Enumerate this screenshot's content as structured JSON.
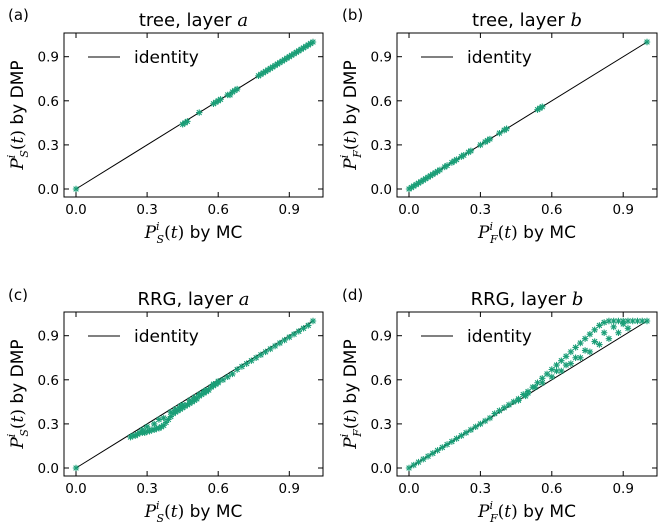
{
  "figure": {
    "marker_color": "#1a9e77",
    "line_color": "#000000"
  },
  "chart_data": [
    {
      "type": "scatter",
      "panel": "(a)",
      "title": "tree, layer a",
      "title_prefix": "tree, layer ",
      "title_var": "a",
      "xlabel": "P_S^i(t) by MC",
      "ylabel": "P_S^i(t) by DMP",
      "label_sub": "S",
      "xlim": [
        0,
        1
      ],
      "ylim": [
        0,
        1
      ],
      "xticks": [
        "0.0",
        "0.3",
        "0.6",
        "0.9"
      ],
      "yticks": [
        "0.0",
        "0.3",
        "0.6",
        "0.9"
      ],
      "legend": "identity",
      "legend_position": "top-left",
      "series": [
        {
          "points": [
            [
              0.0,
              0.0
            ],
            [
              0.45,
              0.44
            ],
            [
              0.46,
              0.45
            ],
            [
              0.47,
              0.46
            ],
            [
              0.52,
              0.52
            ],
            [
              0.58,
              0.58
            ],
            [
              0.59,
              0.59
            ],
            [
              0.6,
              0.6
            ],
            [
              0.61,
              0.61
            ],
            [
              0.64,
              0.64
            ],
            [
              0.65,
              0.64
            ],
            [
              0.66,
              0.66
            ],
            [
              0.67,
              0.67
            ],
            [
              0.68,
              0.68
            ],
            [
              0.77,
              0.77
            ],
            [
              0.78,
              0.78
            ],
            [
              0.79,
              0.79
            ],
            [
              0.8,
              0.8
            ],
            [
              0.81,
              0.81
            ],
            [
              0.82,
              0.82
            ],
            [
              0.83,
              0.83
            ],
            [
              0.84,
              0.84
            ],
            [
              0.85,
              0.85
            ],
            [
              0.86,
              0.86
            ],
            [
              0.87,
              0.87
            ],
            [
              0.88,
              0.88
            ],
            [
              0.89,
              0.89
            ],
            [
              0.9,
              0.9
            ],
            [
              0.91,
              0.91
            ],
            [
              0.92,
              0.92
            ],
            [
              0.93,
              0.93
            ],
            [
              0.94,
              0.94
            ],
            [
              0.95,
              0.95
            ],
            [
              0.96,
              0.96
            ],
            [
              0.97,
              0.97
            ],
            [
              0.98,
              0.98
            ],
            [
              0.99,
              0.99
            ],
            [
              1.0,
              1.0
            ]
          ]
        }
      ]
    },
    {
      "type": "scatter",
      "panel": "(b)",
      "title": "tree, layer b",
      "title_prefix": "tree, layer ",
      "title_var": "b",
      "xlabel": "P_F^i(t) by MC",
      "ylabel": "P_F^i(t) by DMP",
      "label_sub": "F",
      "xlim": [
        0,
        1
      ],
      "ylim": [
        0,
        1
      ],
      "xticks": [
        "0.0",
        "0.3",
        "0.6",
        "0.9"
      ],
      "yticks": [
        "0.0",
        "0.3",
        "0.6",
        "0.9"
      ],
      "legend": "identity",
      "legend_position": "top-left",
      "series": [
        {
          "points": [
            [
              0.0,
              0.0
            ],
            [
              0.01,
              0.01
            ],
            [
              0.02,
              0.02
            ],
            [
              0.03,
              0.03
            ],
            [
              0.04,
              0.04
            ],
            [
              0.05,
              0.05
            ],
            [
              0.06,
              0.06
            ],
            [
              0.07,
              0.07
            ],
            [
              0.08,
              0.08
            ],
            [
              0.09,
              0.09
            ],
            [
              0.1,
              0.1
            ],
            [
              0.11,
              0.11
            ],
            [
              0.12,
              0.12
            ],
            [
              0.13,
              0.13
            ],
            [
              0.15,
              0.15
            ],
            [
              0.16,
              0.16
            ],
            [
              0.18,
              0.18
            ],
            [
              0.19,
              0.19
            ],
            [
              0.2,
              0.2
            ],
            [
              0.22,
              0.22
            ],
            [
              0.23,
              0.23
            ],
            [
              0.25,
              0.25
            ],
            [
              0.26,
              0.26
            ],
            [
              0.3,
              0.3
            ],
            [
              0.32,
              0.32
            ],
            [
              0.33,
              0.33
            ],
            [
              0.34,
              0.34
            ],
            [
              0.38,
              0.38
            ],
            [
              0.4,
              0.4
            ],
            [
              0.41,
              0.41
            ],
            [
              0.54,
              0.54
            ],
            [
              0.55,
              0.55
            ],
            [
              0.56,
              0.56
            ],
            [
              1.0,
              1.0
            ]
          ]
        }
      ]
    },
    {
      "type": "scatter",
      "panel": "(c)",
      "title": "RRG, layer a",
      "title_prefix": "RRG, layer ",
      "title_var": "a",
      "xlabel": "P_S^i(t) by MC",
      "ylabel": "P_S^i(t) by DMP",
      "label_sub": "S",
      "xlim": [
        0,
        1
      ],
      "ylim": [
        0,
        1
      ],
      "xticks": [
        "0.0",
        "0.3",
        "0.6",
        "0.9"
      ],
      "yticks": [
        "0.0",
        "0.3",
        "0.6",
        "0.9"
      ],
      "legend": "identity",
      "legend_position": "top-left",
      "series": [
        {
          "points": [
            [
              0.0,
              0.0
            ],
            [
              0.23,
              0.21
            ],
            [
              0.24,
              0.22
            ],
            [
              0.25,
              0.22
            ],
            [
              0.26,
              0.23
            ],
            [
              0.27,
              0.24
            ],
            [
              0.28,
              0.24
            ],
            [
              0.29,
              0.24
            ],
            [
              0.3,
              0.25
            ],
            [
              0.31,
              0.25
            ],
            [
              0.32,
              0.26
            ],
            [
              0.33,
              0.26
            ],
            [
              0.34,
              0.27
            ],
            [
              0.35,
              0.27
            ],
            [
              0.36,
              0.28
            ],
            [
              0.37,
              0.29
            ],
            [
              0.38,
              0.31
            ],
            [
              0.39,
              0.33
            ],
            [
              0.4,
              0.35
            ],
            [
              0.41,
              0.37
            ],
            [
              0.42,
              0.38
            ],
            [
              0.43,
              0.39
            ],
            [
              0.44,
              0.4
            ],
            [
              0.45,
              0.41
            ],
            [
              0.46,
              0.42
            ],
            [
              0.47,
              0.43
            ],
            [
              0.48,
              0.44
            ],
            [
              0.49,
              0.45
            ],
            [
              0.5,
              0.46
            ],
            [
              0.51,
              0.47
            ],
            [
              0.52,
              0.49
            ],
            [
              0.53,
              0.5
            ],
            [
              0.54,
              0.51
            ],
            [
              0.55,
              0.52
            ],
            [
              0.56,
              0.53
            ],
            [
              0.57,
              0.55
            ],
            [
              0.58,
              0.56
            ],
            [
              0.59,
              0.57
            ],
            [
              0.6,
              0.58
            ],
            [
              0.62,
              0.6
            ],
            [
              0.64,
              0.62
            ],
            [
              0.66,
              0.64
            ],
            [
              0.68,
              0.67
            ],
            [
              0.7,
              0.69
            ],
            [
              0.72,
              0.71
            ],
            [
              0.74,
              0.73
            ],
            [
              0.76,
              0.75
            ],
            [
              0.78,
              0.77
            ],
            [
              0.8,
              0.79
            ],
            [
              0.82,
              0.81
            ],
            [
              0.84,
              0.83
            ],
            [
              0.86,
              0.85
            ],
            [
              0.88,
              0.87
            ],
            [
              0.9,
              0.89
            ],
            [
              0.92,
              0.91
            ],
            [
              0.94,
              0.93
            ],
            [
              0.96,
              0.95
            ],
            [
              0.98,
              0.97
            ],
            [
              1.0,
              1.0
            ],
            [
              0.3,
              0.28
            ],
            [
              0.35,
              0.33
            ],
            [
              0.4,
              0.38
            ],
            [
              0.45,
              0.43
            ],
            [
              0.5,
              0.48
            ],
            [
              0.55,
              0.53
            ],
            [
              0.6,
              0.59
            ],
            [
              0.33,
              0.3
            ],
            [
              0.42,
              0.4
            ],
            [
              0.48,
              0.46
            ],
            [
              0.52,
              0.5
            ],
            [
              0.58,
              0.57
            ],
            [
              0.28,
              0.26
            ],
            [
              0.37,
              0.34
            ],
            [
              0.44,
              0.42
            ],
            [
              0.54,
              0.52
            ]
          ]
        }
      ]
    },
    {
      "type": "scatter",
      "panel": "(d)",
      "title": "RRG, layer b",
      "title_prefix": "RRG, layer ",
      "title_var": "b",
      "xlabel": "P_F^i(t) by MC",
      "ylabel": "P_F^i(t) by DMP",
      "label_sub": "F",
      "xlim": [
        0,
        1
      ],
      "ylim": [
        0,
        1
      ],
      "xticks": [
        "0.0",
        "0.3",
        "0.6",
        "0.9"
      ],
      "yticks": [
        "0.0",
        "0.3",
        "0.6",
        "0.9"
      ],
      "legend": "identity",
      "legend_position": "top-left",
      "series": [
        {
          "points": [
            [
              0.0,
              0.0
            ],
            [
              0.02,
              0.02
            ],
            [
              0.04,
              0.04
            ],
            [
              0.06,
              0.06
            ],
            [
              0.08,
              0.08
            ],
            [
              0.1,
              0.1
            ],
            [
              0.12,
              0.12
            ],
            [
              0.14,
              0.14
            ],
            [
              0.16,
              0.16
            ],
            [
              0.18,
              0.18
            ],
            [
              0.2,
              0.2
            ],
            [
              0.22,
              0.22
            ],
            [
              0.24,
              0.24
            ],
            [
              0.26,
              0.26
            ],
            [
              0.28,
              0.28
            ],
            [
              0.3,
              0.3
            ],
            [
              0.32,
              0.32
            ],
            [
              0.34,
              0.34
            ],
            [
              0.36,
              0.37
            ],
            [
              0.38,
              0.39
            ],
            [
              0.4,
              0.41
            ],
            [
              0.42,
              0.43
            ],
            [
              0.44,
              0.45
            ],
            [
              0.46,
              0.47
            ],
            [
              0.48,
              0.5
            ],
            [
              0.5,
              0.52
            ],
            [
              0.52,
              0.55
            ],
            [
              0.54,
              0.58
            ],
            [
              0.56,
              0.61
            ],
            [
              0.58,
              0.64
            ],
            [
              0.6,
              0.67
            ],
            [
              0.62,
              0.7
            ],
            [
              0.64,
              0.73
            ],
            [
              0.66,
              0.76
            ],
            [
              0.68,
              0.79
            ],
            [
              0.7,
              0.82
            ],
            [
              0.72,
              0.85
            ],
            [
              0.74,
              0.88
            ],
            [
              0.76,
              0.91
            ],
            [
              0.78,
              0.94
            ],
            [
              0.8,
              0.97
            ],
            [
              0.82,
              0.99
            ],
            [
              0.84,
              1.0
            ],
            [
              0.86,
              1.0
            ],
            [
              0.88,
              1.0
            ],
            [
              0.9,
              1.0
            ],
            [
              0.92,
              1.0
            ],
            [
              0.94,
              1.0
            ],
            [
              0.96,
              1.0
            ],
            [
              0.98,
              1.0
            ],
            [
              1.0,
              1.0
            ],
            [
              0.6,
              0.62
            ],
            [
              0.64,
              0.66
            ],
            [
              0.68,
              0.71
            ],
            [
              0.72,
              0.75
            ],
            [
              0.76,
              0.79
            ],
            [
              0.8,
              0.84
            ],
            [
              0.84,
              0.88
            ],
            [
              0.88,
              0.92
            ],
            [
              0.92,
              0.95
            ],
            [
              0.62,
              0.66
            ],
            [
              0.66,
              0.7
            ],
            [
              0.7,
              0.75
            ],
            [
              0.74,
              0.8
            ],
            [
              0.78,
              0.86
            ],
            [
              0.82,
              0.92
            ],
            [
              0.86,
              0.96
            ],
            [
              0.9,
              0.98
            ],
            [
              0.5,
              0.51
            ],
            [
              0.53,
              0.55
            ],
            [
              0.56,
              0.58
            ],
            [
              0.46,
              0.46
            ],
            [
              0.49,
              0.49
            ]
          ]
        }
      ]
    }
  ]
}
